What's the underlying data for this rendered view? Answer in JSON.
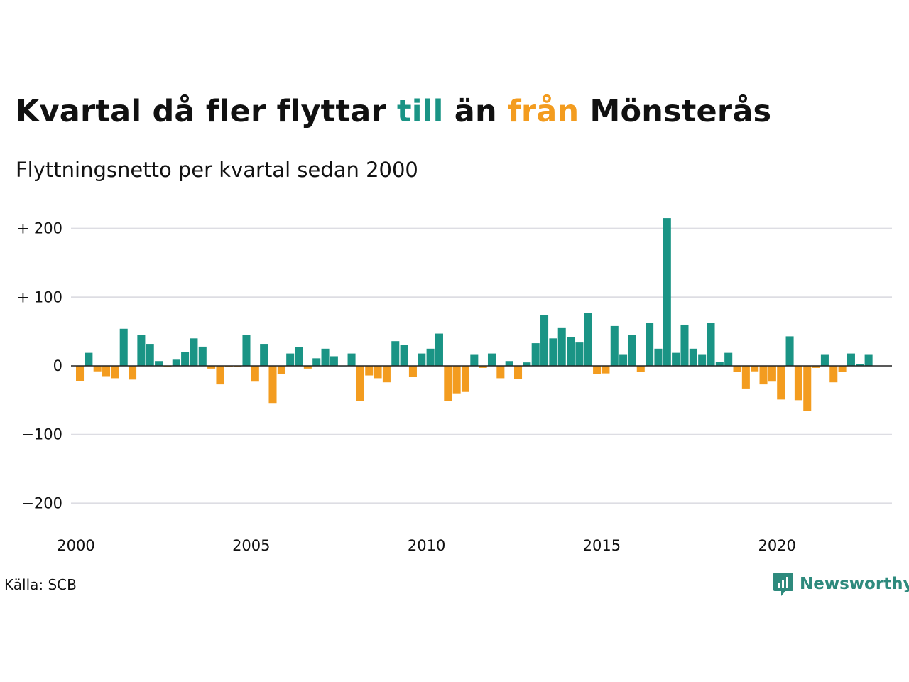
{
  "title": {
    "part1": "Kvartal då fler flyttar ",
    "till": "till",
    "part2": " än ",
    "fran": "från",
    "part3": " Mönsterås"
  },
  "subtitle": "Flyttningsnetto per kvartal sedan 2000",
  "source": "Källa: SCB",
  "brand": {
    "name": "Newsworthy",
    "icon": "newsworthy-logo-icon"
  },
  "colors": {
    "positive": "#1a9485",
    "negative": "#f39c1f",
    "grid": "#dddde3",
    "zero": "#222222",
    "text": "#111111"
  },
  "chart_data": {
    "type": "bar",
    "title": "Kvartal då fler flyttar till än från Mönsterås",
    "subtitle": "Flyttningsnetto per kvartal sedan 2000",
    "x_start": "2000",
    "x_frequency": "quarterly",
    "x_ticks": [
      {
        "value": 2000,
        "label": "2000"
      },
      {
        "value": 2005,
        "label": "2005"
      },
      {
        "value": 2010,
        "label": "2010"
      },
      {
        "value": 2015,
        "label": "2015"
      },
      {
        "value": 2020,
        "label": "2020"
      }
    ],
    "y_ticks": [
      {
        "value": 200,
        "label": "+ 200"
      },
      {
        "value": 100,
        "label": "+ 100"
      },
      {
        "value": 0,
        "label": "0"
      },
      {
        "value": -100,
        "label": "−100"
      },
      {
        "value": -200,
        "label": "−200"
      }
    ],
    "ylim": [
      -200,
      200
    ],
    "xlim": [
      2000,
      2023.25
    ],
    "grid": true,
    "values": [
      -22,
      19,
      -8,
      -15,
      -18,
      54,
      -20,
      45,
      32,
      7,
      -1,
      9,
      20,
      40,
      28,
      -4,
      -27,
      -2,
      -2,
      45,
      -23,
      32,
      -54,
      -12,
      18,
      27,
      -4,
      11,
      25,
      14,
      0,
      18,
      -51,
      -14,
      -18,
      -24,
      36,
      31,
      -16,
      18,
      25,
      47,
      -51,
      -40,
      -38,
      16,
      -3,
      18,
      -18,
      7,
      -19,
      5,
      33,
      74,
      40,
      56,
      42,
      34,
      77,
      -12,
      -11,
      58,
      16,
      45,
      -9,
      63,
      25,
      215,
      19,
      60,
      25,
      16,
      63,
      6,
      19,
      -9,
      -33,
      -8,
      -27,
      -23,
      -49,
      43,
      -50,
      -66,
      -3,
      16,
      -24,
      -9,
      18,
      3,
      16
    ]
  }
}
